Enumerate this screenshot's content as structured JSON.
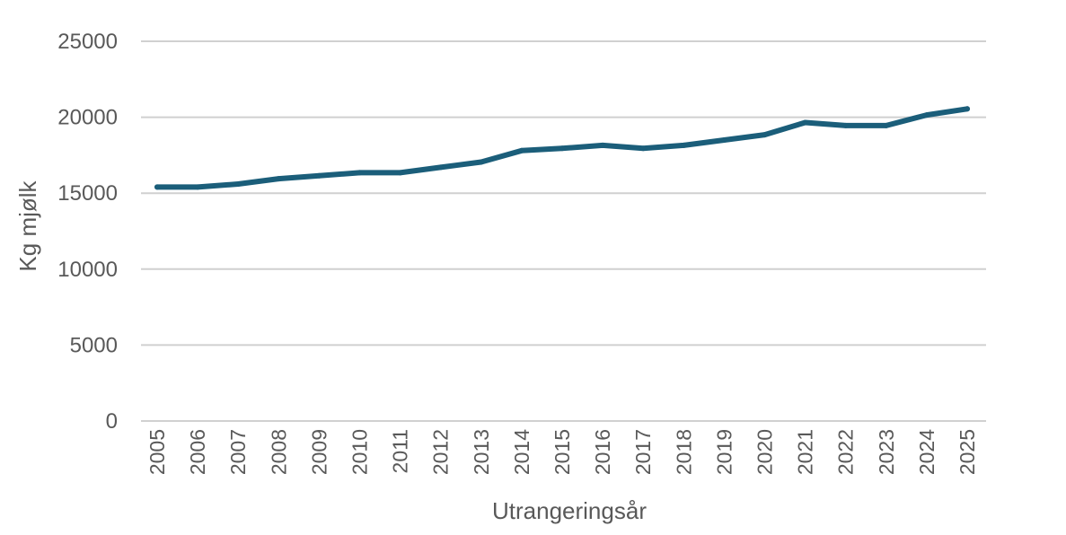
{
  "chart_data": {
    "type": "line",
    "title": "",
    "xlabel": "Utrangeringsår",
    "ylabel": "Kg mjølk",
    "ylim": [
      0,
      25000
    ],
    "y_ticks": [
      "0",
      "5000",
      "10000",
      "15000",
      "20000",
      "25000"
    ],
    "grid": true,
    "legend": "none",
    "categories": [
      "2005",
      "2006",
      "2007",
      "2008",
      "2009",
      "2010",
      "2011",
      "2012",
      "2013",
      "2014",
      "2015",
      "2016",
      "2017",
      "2018",
      "2019",
      "2020",
      "2021",
      "2022",
      "2023",
      "2024",
      "2025"
    ],
    "series": [
      {
        "values": [
          15400,
          15400,
          15600,
          15950,
          16150,
          16350,
          16350,
          16700,
          17050,
          17800,
          17950,
          18150,
          17950,
          18150,
          18500,
          18850,
          19650,
          19450,
          19450,
          20150,
          20550
        ],
        "color": "#1b5e7a"
      }
    ],
    "colors": {
      "gridline": "#d0d0d0",
      "text": "#595959",
      "line": "#1b5e7a"
    }
  }
}
